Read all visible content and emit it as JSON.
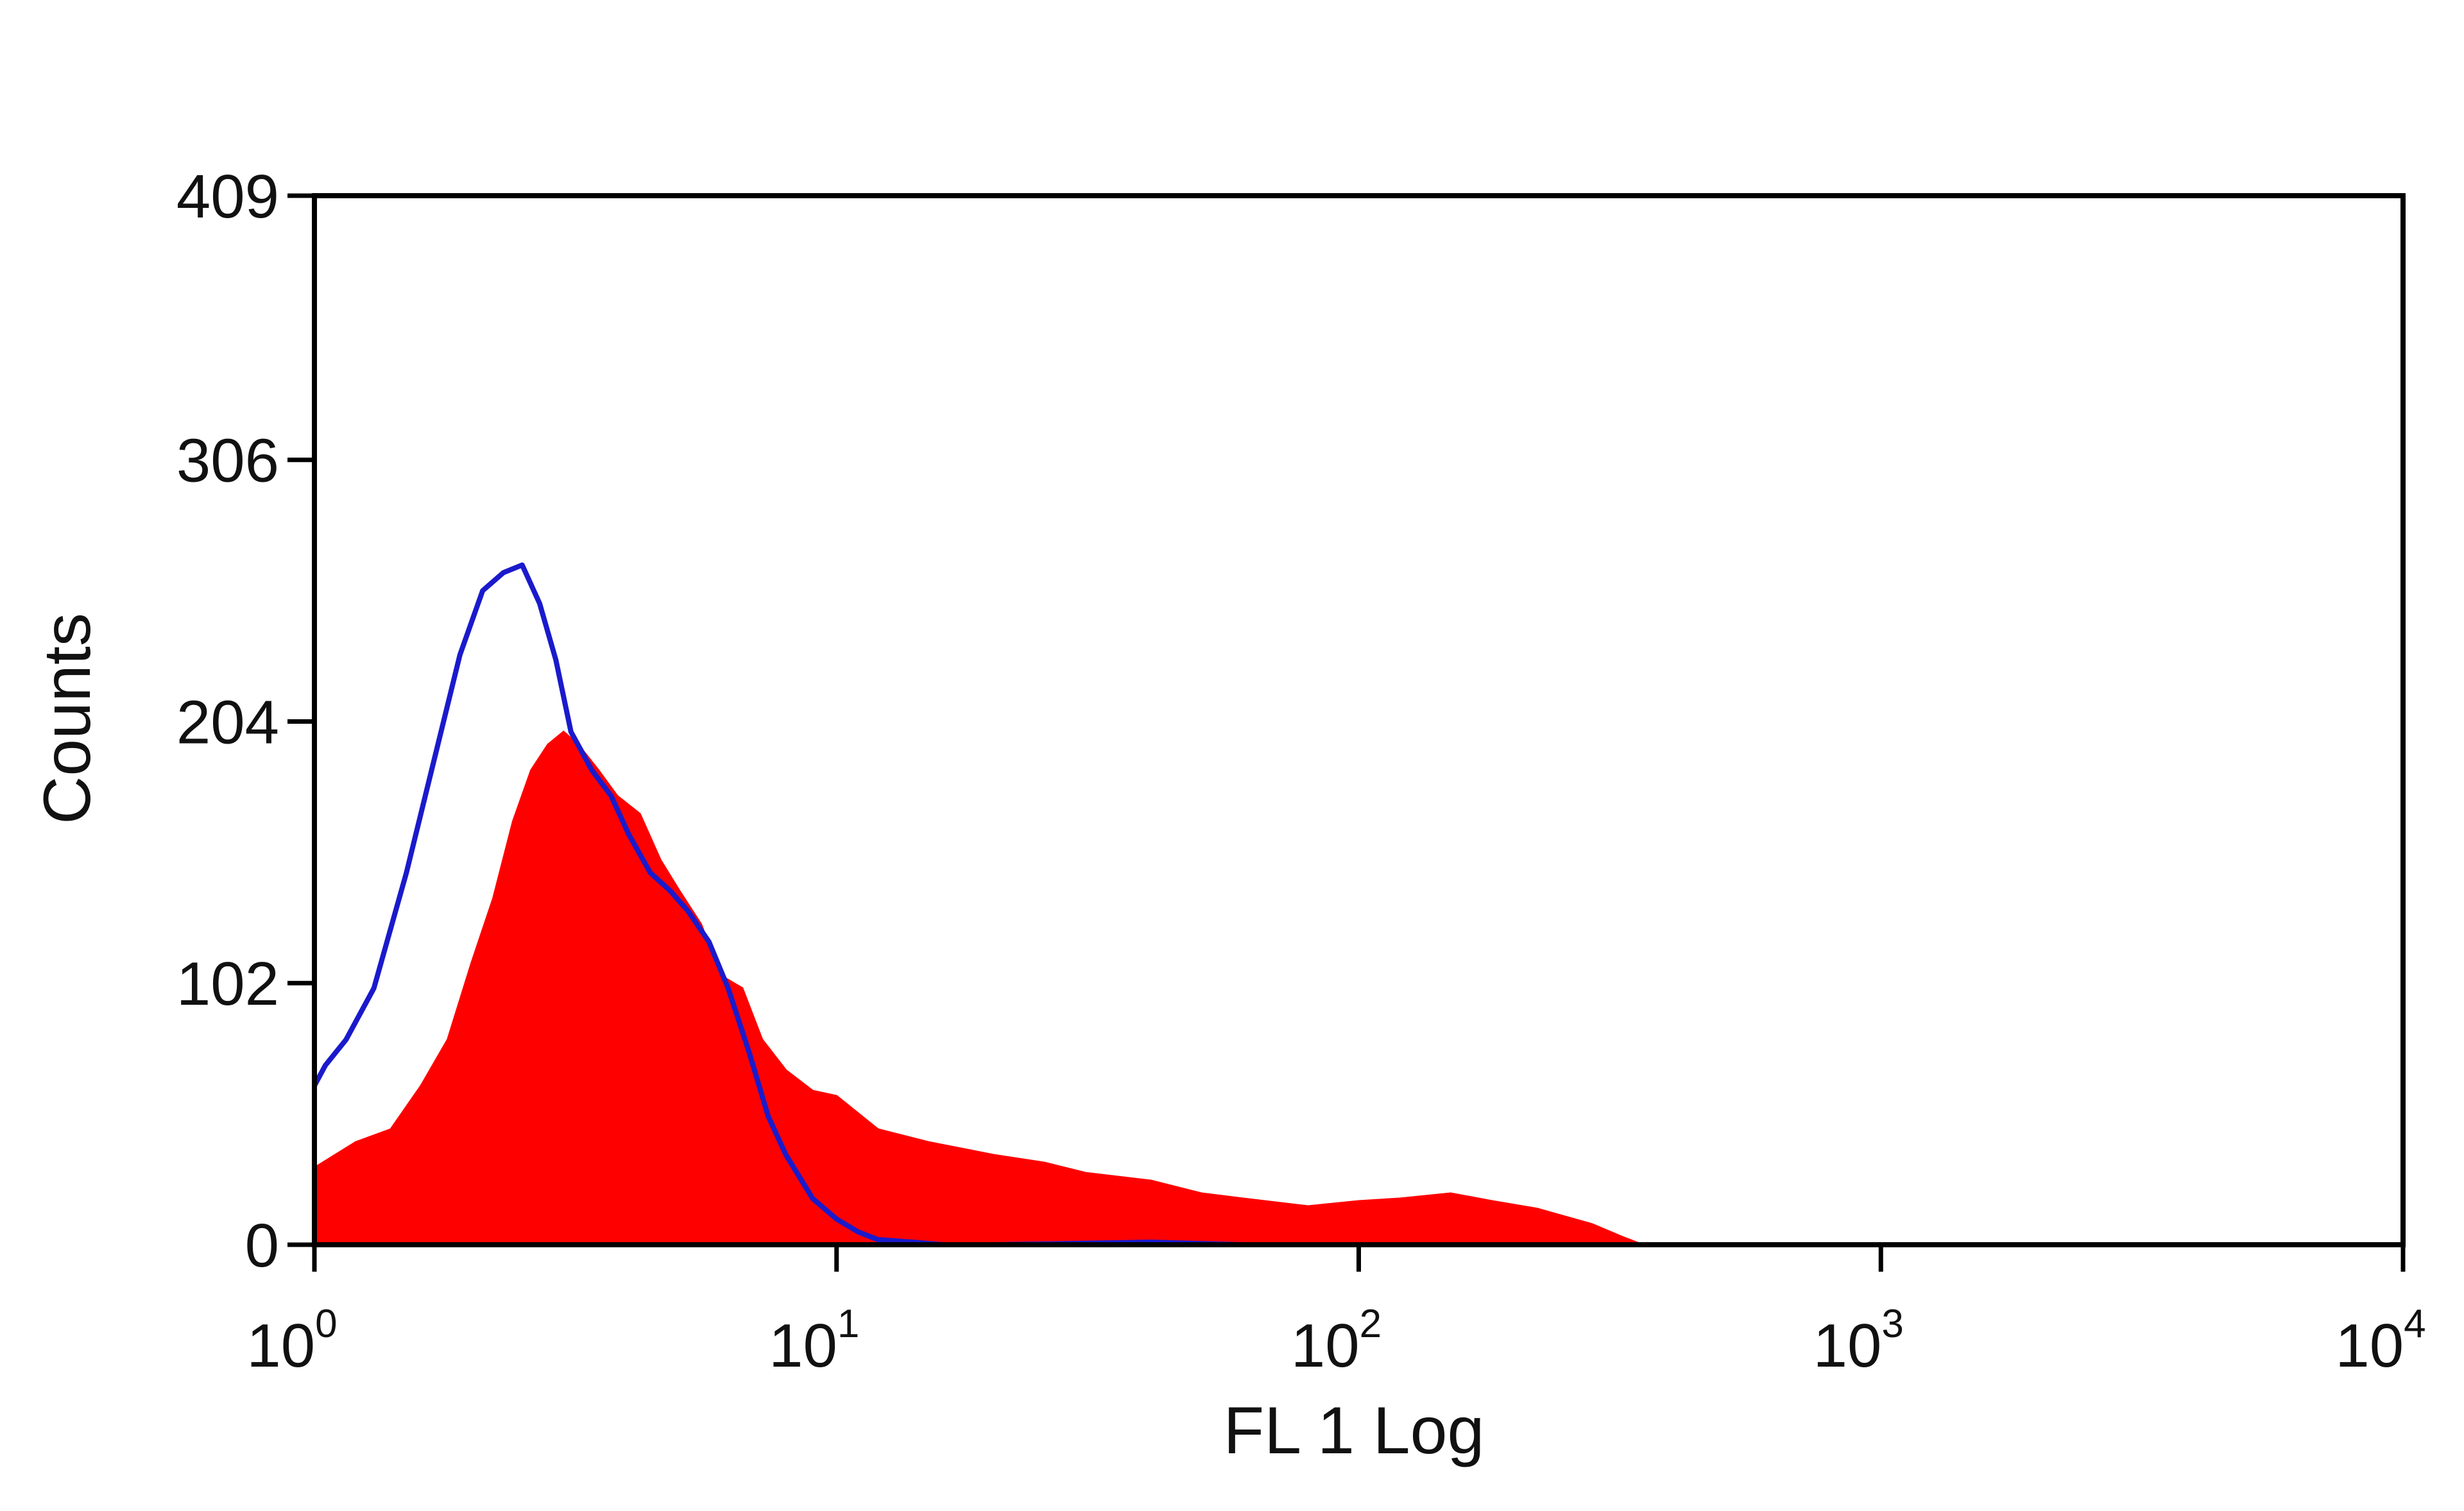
{
  "chart_data": {
    "type": "area",
    "xlabel": "FL 1 Log",
    "ylabel": "Counts",
    "x_scale": "log",
    "xlim": [
      1,
      10000
    ],
    "ylim": [
      0,
      409
    ],
    "y_ticks": [
      0,
      102,
      204,
      306,
      409
    ],
    "x_ticks": [
      {
        "value": 1,
        "base": "10",
        "exp": "0"
      },
      {
        "value": 10,
        "base": "10",
        "exp": "1"
      },
      {
        "value": 100,
        "base": "10",
        "exp": "2"
      },
      {
        "value": 1000,
        "base": "10",
        "exp": "3"
      },
      {
        "value": 10000,
        "base": "10",
        "exp": "4"
      }
    ],
    "grid": false,
    "series": [
      {
        "style": "filled",
        "color": "#ff0000",
        "x": [
          1.0,
          1.2,
          1.4,
          1.6,
          1.8,
          2.0,
          2.2,
          2.4,
          2.6,
          2.8,
          3.0,
          3.2,
          3.5,
          3.8,
          4.2,
          4.6,
          5.0,
          5.5,
          6.0,
          6.6,
          7.2,
          8.0,
          9.0,
          10.0,
          12.0,
          15.0,
          20.0,
          25.0,
          30.0,
          40.0,
          50.0,
          60.0,
          80.0,
          100.0,
          120.0,
          150.0,
          180.0,
          220.0,
          280.0,
          320.0,
          350.0
        ],
        "y": [
          30,
          40,
          45,
          62,
          80,
          110,
          135,
          165,
          185,
          195,
          200,
          195,
          185,
          175,
          168,
          150,
          138,
          125,
          105,
          100,
          80,
          68,
          60,
          58,
          45,
          40,
          35,
          32,
          28,
          25,
          20,
          18,
          15,
          17,
          18,
          20,
          17,
          14,
          8,
          3,
          0
        ]
      },
      {
        "style": "line",
        "color": "#1a1acc",
        "x": [
          1.0,
          1.05,
          1.15,
          1.3,
          1.5,
          1.7,
          1.9,
          2.1,
          2.3,
          2.5,
          2.7,
          2.9,
          3.1,
          3.4,
          3.7,
          4.0,
          4.4,
          4.8,
          5.2,
          5.7,
          6.2,
          6.8,
          7.4,
          8.0,
          9.0,
          10.0,
          11.0,
          12.0,
          14.0,
          16.0,
          20.0,
          40.0,
          60.0
        ],
        "y": [
          62,
          70,
          80,
          100,
          145,
          190,
          230,
          255,
          262,
          265,
          250,
          228,
          200,
          185,
          175,
          160,
          145,
          138,
          130,
          118,
          100,
          75,
          50,
          35,
          18,
          10,
          5,
          2,
          1,
          0,
          0,
          1,
          0
        ]
      }
    ]
  }
}
